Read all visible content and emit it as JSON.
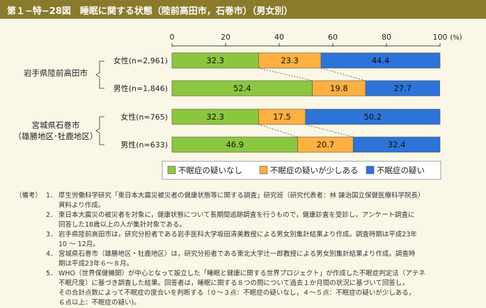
{
  "title": "第１−特−28図　睡眠に関する状態（陸前高田市，石巻市）（男女別）",
  "chart_data": {
    "type": "bar",
    "stacked": true,
    "orientation": "horizontal",
    "x_ticks": [
      "0",
      "20",
      "40",
      "60",
      "80",
      "100"
    ],
    "x_unit": "(%)",
    "xlim": [
      0,
      100
    ],
    "groups": [
      {
        "label_lines": [
          "岩手県陸前高田市"
        ],
        "bars": [
          0,
          1
        ]
      },
      {
        "label_lines": [
          "宮城県石巻市",
          "（雄勝地区･牡鹿地区）"
        ],
        "bars": [
          2,
          3
        ]
      }
    ],
    "categories": [
      "女性(n=2,961)",
      "男性(n=1,846)",
      "女性(n=765)",
      "男性(n=633)"
    ],
    "series": [
      {
        "name": "不眠症の疑いなし",
        "values": [
          32.3,
          52.4,
          32.3,
          46.9
        ],
        "color": "#8cc63f"
      },
      {
        "name": "不眠症の疑いが少しある",
        "values": [
          23.3,
          19.8,
          17.5,
          20.7
        ],
        "color": "#fbb040"
      },
      {
        "name": "不眠症の疑い",
        "values": [
          44.4,
          27.7,
          50.2,
          32.4
        ],
        "color": "#2e73d8"
      }
    ],
    "legend_position": "bottom-right",
    "grid": false
  },
  "notes": {
    "label": "（備考）",
    "items": [
      {
        "num": "1．",
        "lines": [
          "厚生労働科学研究「東日本大震災被災者の健康状態等に関する調査」研究班（研究代表者：林 謙治国立保健医療科学院長）",
          "資料より作成。"
        ]
      },
      {
        "num": "2．",
        "lines": [
          "東日本大震災の被災者を対象に，健康状態について長期間追跡調査を行うもので，健康診査を受診し，アンケート調査に",
          "回答した18歳以上の人が集計対象である。"
        ]
      },
      {
        "num": "3．",
        "lines": [
          "岩手県陸前高田市は，研究分担者である岩手医科大学坂田清美教授による男女別集計結果より作成。調査時期は平成23年",
          "10 ～ 12月。"
        ]
      },
      {
        "num": "4．",
        "lines": [
          "宮城県石巻市（雄勝地区・牡鹿地区）は，研究分担者である東北大学辻一郎教授による男女別集計結果より作成。調査時",
          "期は平成23年６～８月。"
        ]
      },
      {
        "num": "5．",
        "lines": [
          "WHO（世界保健機関）が中心となって設立した「睡眠と健康に関する世界プロジェクト」が作成した不眠症判定法（アテネ",
          "不眠尺度）に基づき調査した結果。回答者は，睡眠に関する８つの問について過去１か月間の状況に基づいて回答し，",
          "その合計点数によって不眠症の度合いを判断する（０～３点：不眠症の疑いなし，４～５点：不眠症の疑いが少しある，",
          "６点以上：不眠症の疑い)。"
        ]
      }
    ]
  }
}
